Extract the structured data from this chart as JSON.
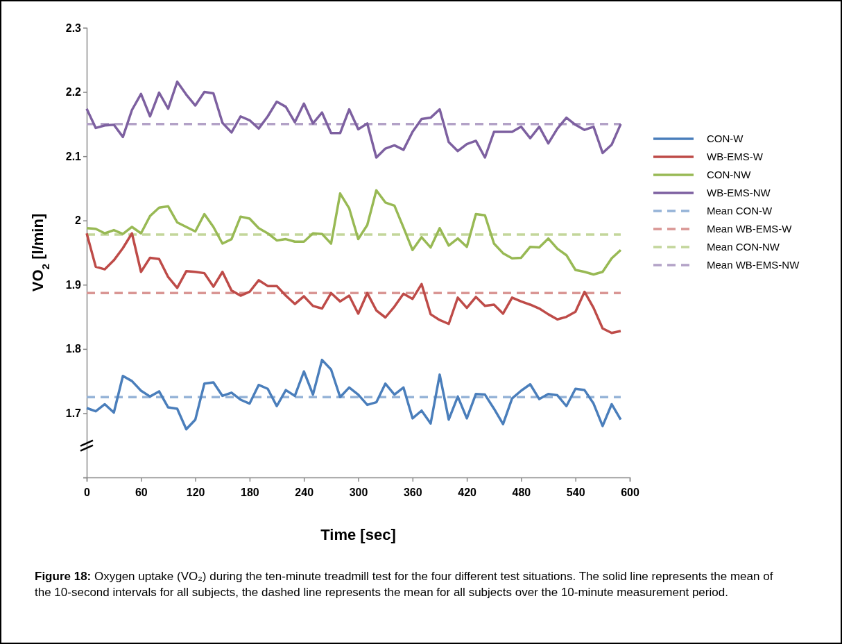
{
  "chart_data": {
    "type": "line",
    "xlabel": "Time [sec]",
    "ylabel": "VO$_{2}$ [l/min]",
    "xlim": [
      0,
      600
    ],
    "xticks": [
      0,
      60,
      120,
      180,
      240,
      300,
      360,
      420,
      480,
      540,
      600
    ],
    "ylim": [
      1.6,
      2.3
    ],
    "yticks": [
      {
        "value": 1.6,
        "label": null
      },
      1.7,
      1.8,
      1.9,
      2,
      2.1,
      2.2,
      2.3
    ],
    "x": [
      0,
      10,
      20,
      30,
      40,
      50,
      60,
      70,
      80,
      90,
      100,
      110,
      120,
      130,
      140,
      150,
      160,
      170,
      180,
      190,
      200,
      210,
      220,
      230,
      240,
      250,
      260,
      270,
      280,
      290,
      300,
      310,
      320,
      330,
      340,
      350,
      360,
      370,
      380,
      390,
      400,
      410,
      420,
      430,
      440,
      450,
      460,
      470,
      480,
      490,
      500,
      510,
      520,
      530,
      540,
      550,
      560,
      570,
      580,
      590
    ],
    "legend": "right",
    "grid": false,
    "marker": "none",
    "series": [
      {
        "name": "CON-W",
        "color": "#4a7ebb",
        "line_style": "solid",
        "values": [
          1.708,
          1.703,
          1.714,
          1.701,
          1.758,
          1.75,
          1.735,
          1.726,
          1.734,
          1.709,
          1.707,
          1.675,
          1.69,
          1.746,
          1.748,
          1.727,
          1.732,
          1.721,
          1.715,
          1.744,
          1.738,
          1.711,
          1.736,
          1.727,
          1.765,
          1.729,
          1.783,
          1.768,
          1.725,
          1.74,
          1.729,
          1.713,
          1.717,
          1.746,
          1.729,
          1.74,
          1.692,
          1.704,
          1.684,
          1.76,
          1.69,
          1.726,
          1.692,
          1.73,
          1.729,
          1.707,
          1.683,
          1.723,
          1.735,
          1.745,
          1.722,
          1.73,
          1.728,
          1.711,
          1.738,
          1.736,
          1.715,
          1.68,
          1.714,
          1.69
        ]
      },
      {
        "name": "WB-EMS-W",
        "color": "#be4b48",
        "line_style": "solid",
        "values": [
          1.98,
          1.928,
          1.924,
          1.938,
          1.957,
          1.98,
          1.92,
          1.942,
          1.94,
          1.912,
          1.895,
          1.921,
          1.92,
          1.918,
          1.897,
          1.92,
          1.891,
          1.883,
          1.889,
          1.907,
          1.898,
          1.898,
          1.883,
          1.87,
          1.882,
          1.867,
          1.863,
          1.887,
          1.874,
          1.883,
          1.855,
          1.887,
          1.86,
          1.849,
          1.866,
          1.886,
          1.878,
          1.901,
          1.854,
          1.845,
          1.839,
          1.88,
          1.864,
          1.881,
          1.867,
          1.869,
          1.855,
          1.88,
          1.874,
          1.869,
          1.863,
          1.854,
          1.846,
          1.85,
          1.858,
          1.889,
          1.864,
          1.832,
          1.825,
          1.828
        ]
      },
      {
        "name": "CON-NW",
        "color": "#98b954",
        "line_style": "solid",
        "values": [
          1.988,
          1.987,
          1.98,
          1.985,
          1.979,
          1.99,
          1.98,
          2.007,
          2.02,
          2.022,
          1.997,
          1.99,
          1.983,
          2.01,
          1.99,
          1.964,
          1.971,
          2.006,
          2.003,
          1.988,
          1.98,
          1.969,
          1.971,
          1.967,
          1.967,
          1.98,
          1.979,
          1.964,
          2.042,
          2.019,
          1.971,
          1.993,
          2.047,
          2.028,
          2.023,
          1.989,
          1.954,
          1.974,
          1.958,
          1.988,
          1.961,
          1.972,
          1.959,
          2.01,
          2.008,
          1.964,
          1.949,
          1.941,
          1.942,
          1.959,
          1.958,
          1.972,
          1.956,
          1.946,
          1.923,
          1.92,
          1.916,
          1.92,
          1.941,
          1.954
        ]
      },
      {
        "name": "WB-EMS-NW",
        "color": "#7d60a0",
        "line_style": "solid",
        "values": [
          2.174,
          2.144,
          2.148,
          2.149,
          2.13,
          2.172,
          2.197,
          2.162,
          2.199,
          2.174,
          2.216,
          2.196,
          2.179,
          2.2,
          2.198,
          2.152,
          2.137,
          2.162,
          2.156,
          2.143,
          2.162,
          2.185,
          2.177,
          2.153,
          2.182,
          2.151,
          2.168,
          2.136,
          2.136,
          2.173,
          2.142,
          2.151,
          2.098,
          2.112,
          2.117,
          2.11,
          2.138,
          2.158,
          2.16,
          2.173,
          2.122,
          2.108,
          2.119,
          2.124,
          2.098,
          2.138,
          2.138,
          2.138,
          2.146,
          2.128,
          2.146,
          2.12,
          2.143,
          2.16,
          2.149,
          2.141,
          2.146,
          2.105,
          2.118,
          2.15
        ]
      },
      {
        "name": "Mean CON-W",
        "color": "#95b3d7",
        "line_style": "dashed",
        "values": [
          1.725,
          1.725,
          1.725,
          1.725,
          1.725,
          1.725,
          1.725,
          1.725,
          1.725,
          1.725,
          1.725,
          1.725,
          1.725,
          1.725,
          1.725,
          1.725,
          1.725,
          1.725,
          1.725,
          1.725,
          1.725,
          1.725,
          1.725,
          1.725,
          1.725,
          1.725,
          1.725,
          1.725,
          1.725,
          1.725,
          1.725,
          1.725,
          1.725,
          1.725,
          1.725,
          1.725,
          1.725,
          1.725,
          1.725,
          1.725,
          1.725,
          1.725,
          1.725,
          1.725,
          1.725,
          1.725,
          1.725,
          1.725,
          1.725,
          1.725,
          1.725,
          1.725,
          1.725,
          1.725,
          1.725,
          1.725,
          1.725,
          1.725,
          1.725,
          1.725
        ]
      },
      {
        "name": "Mean WB-EMS-W",
        "color": "#d99694",
        "line_style": "dashed",
        "values": [
          1.887,
          1.887,
          1.887,
          1.887,
          1.887,
          1.887,
          1.887,
          1.887,
          1.887,
          1.887,
          1.887,
          1.887,
          1.887,
          1.887,
          1.887,
          1.887,
          1.887,
          1.887,
          1.887,
          1.887,
          1.887,
          1.887,
          1.887,
          1.887,
          1.887,
          1.887,
          1.887,
          1.887,
          1.887,
          1.887,
          1.887,
          1.887,
          1.887,
          1.887,
          1.887,
          1.887,
          1.887,
          1.887,
          1.887,
          1.887,
          1.887,
          1.887,
          1.887,
          1.887,
          1.887,
          1.887,
          1.887,
          1.887,
          1.887,
          1.887,
          1.887,
          1.887,
          1.887,
          1.887,
          1.887,
          1.887,
          1.887,
          1.887,
          1.887,
          1.887
        ]
      },
      {
        "name": "Mean CON-NW",
        "color": "#c3d69b",
        "line_style": "dashed",
        "values": [
          1.978,
          1.978,
          1.978,
          1.978,
          1.978,
          1.978,
          1.978,
          1.978,
          1.978,
          1.978,
          1.978,
          1.978,
          1.978,
          1.978,
          1.978,
          1.978,
          1.978,
          1.978,
          1.978,
          1.978,
          1.978,
          1.978,
          1.978,
          1.978,
          1.978,
          1.978,
          1.978,
          1.978,
          1.978,
          1.978,
          1.978,
          1.978,
          1.978,
          1.978,
          1.978,
          1.978,
          1.978,
          1.978,
          1.978,
          1.978,
          1.978,
          1.978,
          1.978,
          1.978,
          1.978,
          1.978,
          1.978,
          1.978,
          1.978,
          1.978,
          1.978,
          1.978,
          1.978,
          1.978,
          1.978,
          1.978,
          1.978,
          1.978,
          1.978,
          1.978
        ]
      },
      {
        "name": "Mean WB-EMS-NW",
        "color": "#b3a2c7",
        "line_style": "dashed",
        "values": [
          2.15,
          2.15,
          2.15,
          2.15,
          2.15,
          2.15,
          2.15,
          2.15,
          2.15,
          2.15,
          2.15,
          2.15,
          2.15,
          2.15,
          2.15,
          2.15,
          2.15,
          2.15,
          2.15,
          2.15,
          2.15,
          2.15,
          2.15,
          2.15,
          2.15,
          2.15,
          2.15,
          2.15,
          2.15,
          2.15,
          2.15,
          2.15,
          2.15,
          2.15,
          2.15,
          2.15,
          2.15,
          2.15,
          2.15,
          2.15,
          2.15,
          2.15,
          2.15,
          2.15,
          2.15,
          2.15,
          2.15,
          2.15,
          2.15,
          2.15,
          2.15,
          2.15,
          2.15,
          2.15,
          2.15,
          2.15,
          2.15,
          2.15,
          2.15,
          2.15
        ]
      }
    ],
    "annotations": [
      "Figure 18: Oxygen uptake (VO₂) during the ten-minute treadmill test for the four different test situations. The solid line represents the mean of the 10-second intervals for all subjects, the dashed line represents the mean for all subjects over the 10-minute measurement period."
    ]
  }
}
